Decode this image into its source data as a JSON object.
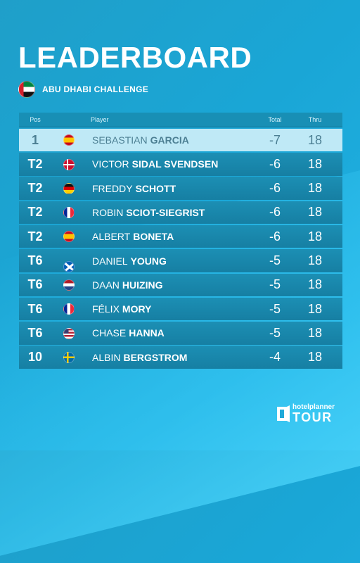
{
  "title": "LEADERBOARD",
  "event": {
    "name": "ABU DHABI CHALLENGE",
    "flag_icon": "uae-flag-icon"
  },
  "columns": {
    "pos": "Pos",
    "player": "Player",
    "total": "Total",
    "thru": "Thru"
  },
  "rows": [
    {
      "pos": "1",
      "first": "SEBASTIAN",
      "last": "GARCIA",
      "total": "-7",
      "thru": "18",
      "flag": "es",
      "leader": true
    },
    {
      "pos": "T2",
      "first": "VICTOR",
      "last": "SIDAL SVENDSEN",
      "total": "-6",
      "thru": "18",
      "flag": "dk"
    },
    {
      "pos": "T2",
      "first": "FREDDY",
      "last": "SCHOTT",
      "total": "-6",
      "thru": "18",
      "flag": "de"
    },
    {
      "pos": "T2",
      "first": "ROBIN",
      "last": "SCIOT-SIEGRIST",
      "total": "-6",
      "thru": "18",
      "flag": "fr"
    },
    {
      "pos": "T2",
      "first": "ALBERT",
      "last": "BONETA",
      "total": "-6",
      "thru": "18",
      "flag": "es"
    },
    {
      "pos": "T6",
      "first": "DANIEL",
      "last": "YOUNG",
      "total": "-5",
      "thru": "18",
      "flag": "sc"
    },
    {
      "pos": "T6",
      "first": "DAAN",
      "last": "HUIZING",
      "total": "-5",
      "thru": "18",
      "flag": "nl"
    },
    {
      "pos": "T6",
      "first": "FÉLIX",
      "last": "MORY",
      "total": "-5",
      "thru": "18",
      "flag": "fr"
    },
    {
      "pos": "T6",
      "first": "CHASE",
      "last": "HANNA",
      "total": "-5",
      "thru": "18",
      "flag": "us"
    },
    {
      "pos": "10",
      "first": "ALBIN",
      "last": "BERGSTROM",
      "total": "-4",
      "thru": "18",
      "flag": "se"
    }
  ],
  "brand": {
    "top": "hotelplanner",
    "bottom": "TOUR",
    "icon": "hotelplanner-door-icon"
  },
  "colors": {
    "background": "#1aa6d6",
    "row": "#1887ac",
    "leader_row": "#bfe9f6",
    "leader_text": "#4c7f93"
  }
}
